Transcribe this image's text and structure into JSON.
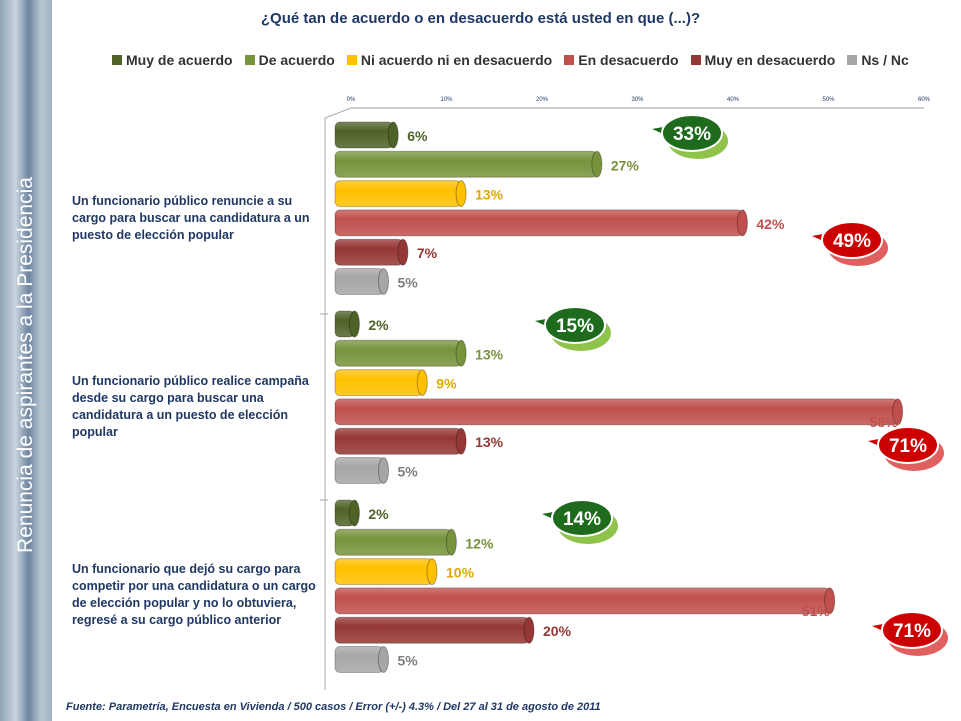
{
  "side_title": "Renuncia de aspirantes a la Presidencia",
  "source": "Fuente: Parametría, Encuesta en Vivienda / 500 casos / Error (+/-) 4.3% / Del  27 al 31 de agosto de 2011",
  "chart_data": {
    "type": "bar",
    "orientation": "horizontal",
    "title": "¿Qué tan de acuerdo o en desacuerdo está usted en que (...)?",
    "xlim": [
      0,
      60
    ],
    "x_ticks": [
      "0%",
      "10%",
      "20%",
      "30%",
      "40%",
      "50%",
      "60%"
    ],
    "legend_position": "top",
    "categories": [
      "Un funcionario público renuncie a su cargo para buscar una candidatura a un puesto de elección popular",
      "Un funcionario público realice campaña desde su cargo para buscar una candidatura a un puesto de elección popular",
      "Un funcionario que dejó su cargo para competir por una candidatura o un cargo de elección popular y no lo obtuviera, regresé a su cargo público anterior"
    ],
    "series": [
      {
        "name": "Muy de acuerdo",
        "color": "#4f6228",
        "values": [
          6,
          2,
          2
        ]
      },
      {
        "name": "De acuerdo",
        "color": "#77933c",
        "values": [
          27,
          13,
          12
        ]
      },
      {
        "name": "Ni acuerdo ni en desacuerdo",
        "color": "#ffc000",
        "values": [
          13,
          9,
          10
        ]
      },
      {
        "name": "En desacuerdo",
        "color": "#c0504d",
        "values": [
          42,
          58,
          51
        ]
      },
      {
        "name": "Muy en desacuerdo",
        "color": "#953735",
        "values": [
          7,
          13,
          20
        ]
      },
      {
        "name": "Ns / Nc",
        "color": "#a6a6a6",
        "values": [
          5,
          5,
          5
        ]
      }
    ],
    "label_colors": [
      "#4f6228",
      "#77933c",
      "#e0a800",
      "#c0504d",
      "#953735",
      "#7f7f7f"
    ],
    "annotations": [
      {
        "group": 0,
        "type": "agree_total",
        "text": "33%"
      },
      {
        "group": 0,
        "type": "disagree_total",
        "text": "49%"
      },
      {
        "group": 1,
        "type": "agree_total",
        "text": "15%"
      },
      {
        "group": 1,
        "type": "disagree_total",
        "text": "71%"
      },
      {
        "group": 2,
        "type": "agree_total",
        "text": "14%"
      },
      {
        "group": 2,
        "type": "disagree_total",
        "text": "71%"
      }
    ]
  }
}
